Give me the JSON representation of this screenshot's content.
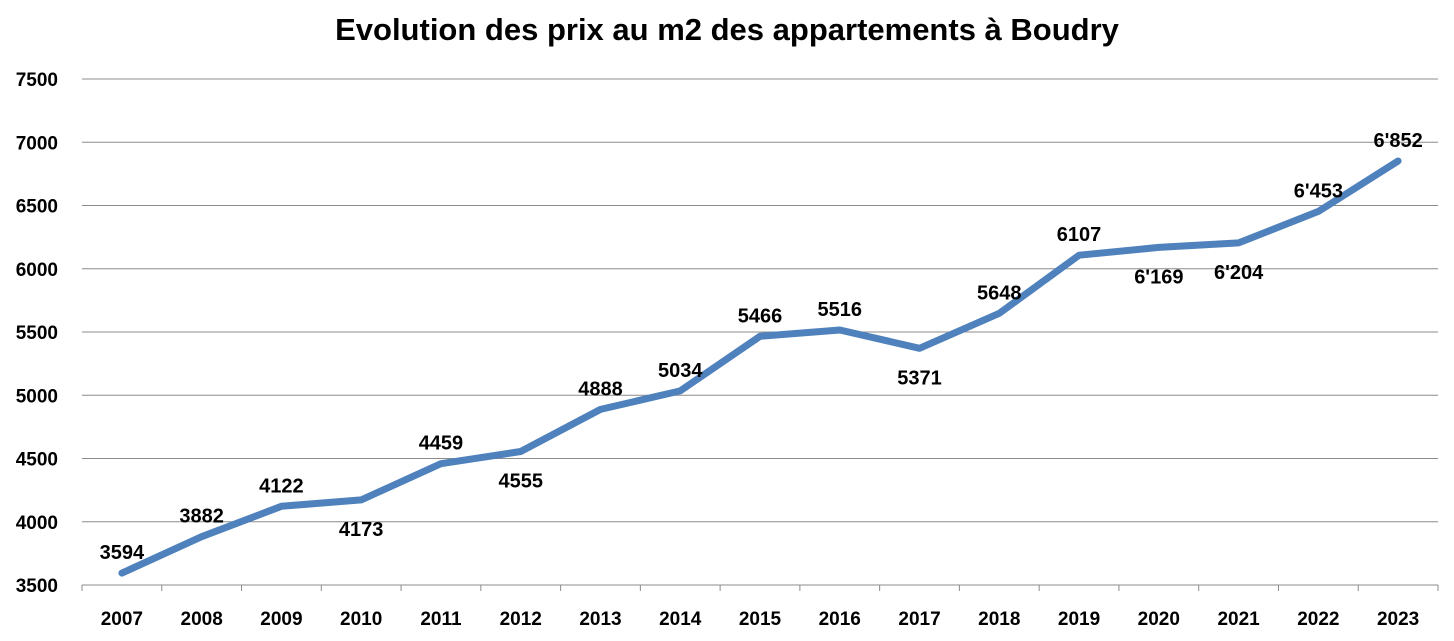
{
  "chart_data": {
    "type": "line",
    "title": "Evolution des prix au m2 des appartements à Boudry",
    "xlabel": "",
    "ylabel": "",
    "categories": [
      "2007",
      "2008",
      "2009",
      "2010",
      "2011",
      "2012",
      "2013",
      "2014",
      "2015",
      "2016",
      "2017",
      "2018",
      "2019",
      "2020",
      "2021",
      "2022",
      "2023"
    ],
    "series": [
      {
        "values": [
          3594,
          3882,
          4122,
          4173,
          4459,
          4555,
          4888,
          5034,
          5466,
          5516,
          5371,
          5648,
          6107,
          6169,
          6204,
          6453,
          6852
        ],
        "labels": [
          "3594",
          "3882",
          "4122",
          "4173",
          "4459",
          "4555",
          "4888",
          "5034",
          "5466",
          "5516",
          "5371",
          "5648",
          "6107",
          "6'169",
          "6'204",
          "6'453",
          "6'852"
        ],
        "color": "#4f81bd"
      }
    ],
    "ylim": [
      3500,
      7500
    ],
    "yticks": [
      "3500",
      "4000",
      "4500",
      "5000",
      "5500",
      "6000",
      "6500",
      "7000",
      "7500"
    ],
    "grid": true,
    "legend": "none"
  }
}
